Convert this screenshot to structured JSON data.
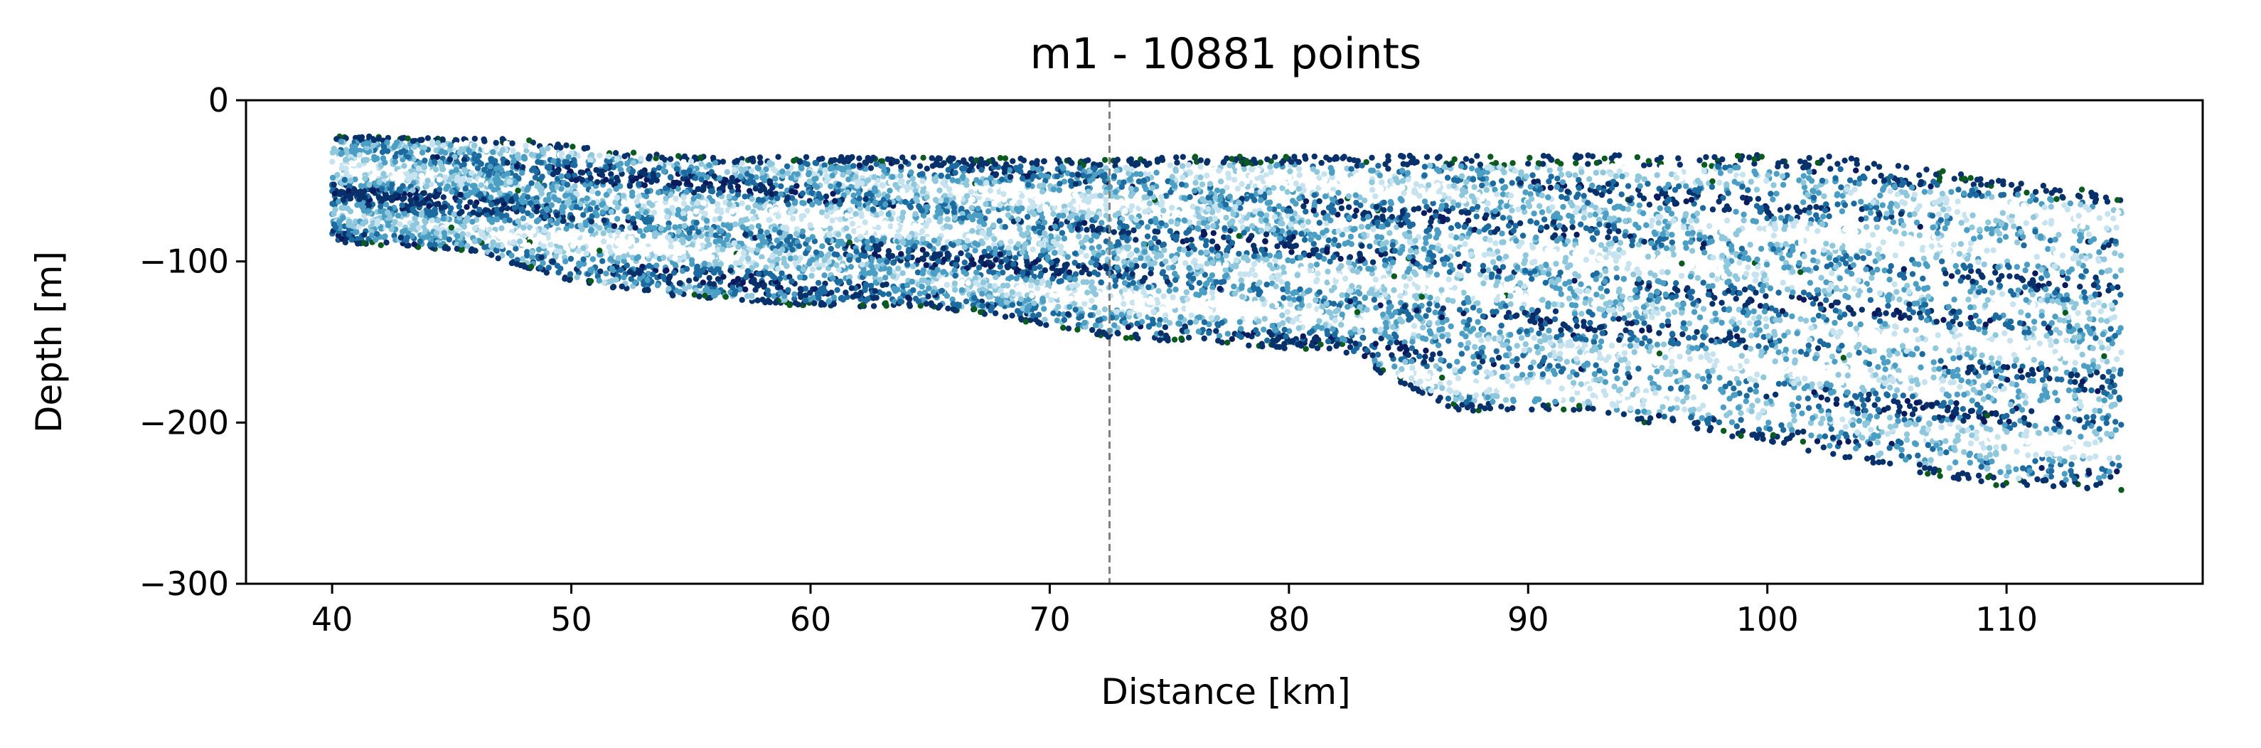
{
  "chart_data": {
    "type": "scatter",
    "title": "m1 - 10881 points",
    "xlabel": "Distance [km]",
    "ylabel": "Depth [m]",
    "xlim": [
      36.4,
      118.2
    ],
    "ylim": [
      -300,
      0
    ],
    "xticks": [
      40,
      50,
      60,
      70,
      80,
      90,
      100,
      110
    ],
    "yticks": [
      0,
      -100,
      -200,
      -300
    ],
    "xtick_labels": [
      "40",
      "50",
      "60",
      "70",
      "80",
      "90",
      "100",
      "110"
    ],
    "ytick_labels": [
      "0",
      "−100",
      "−200",
      "−300"
    ],
    "grid": false,
    "legend": "none",
    "point_count": 10881,
    "vline": {
      "x": 72.5,
      "style": "dashed",
      "color": "#808080"
    },
    "colormap": [
      "#ffffff",
      "#c6e3ef",
      "#8fc8dd",
      "#4b9ec4",
      "#1b6aa0",
      "#08306b",
      "#0b1a5c",
      "#0b5a1e"
    ],
    "x_range": [
      40.0,
      114.8
    ],
    "top_profile": [
      [
        40.0,
        -22
      ],
      [
        48.0,
        -24
      ],
      [
        52.0,
        -32
      ],
      [
        56.0,
        -35
      ],
      [
        60.0,
        -35
      ],
      [
        70.0,
        -36
      ],
      [
        72.5,
        -37
      ],
      [
        75.0,
        -35
      ],
      [
        90.0,
        -34
      ],
      [
        103.0,
        -34
      ],
      [
        108.0,
        -45
      ],
      [
        110.0,
        -50
      ],
      [
        114.8,
        -58
      ]
    ],
    "bottom_profile": [
      [
        40.0,
        -88
      ],
      [
        46.0,
        -94
      ],
      [
        50.0,
        -113
      ],
      [
        55.0,
        -123
      ],
      [
        60.0,
        -128
      ],
      [
        65.0,
        -128
      ],
      [
        70.0,
        -140
      ],
      [
        72.5,
        -147
      ],
      [
        73.5,
        -148
      ],
      [
        80.0,
        -155
      ],
      [
        82.0,
        -155
      ],
      [
        85.0,
        -178
      ],
      [
        87.0,
        -193
      ],
      [
        92.0,
        -193
      ],
      [
        97.0,
        -205
      ],
      [
        100.0,
        -212
      ],
      [
        105.0,
        -228
      ],
      [
        110.0,
        -240
      ],
      [
        114.8,
        -243
      ]
    ]
  }
}
